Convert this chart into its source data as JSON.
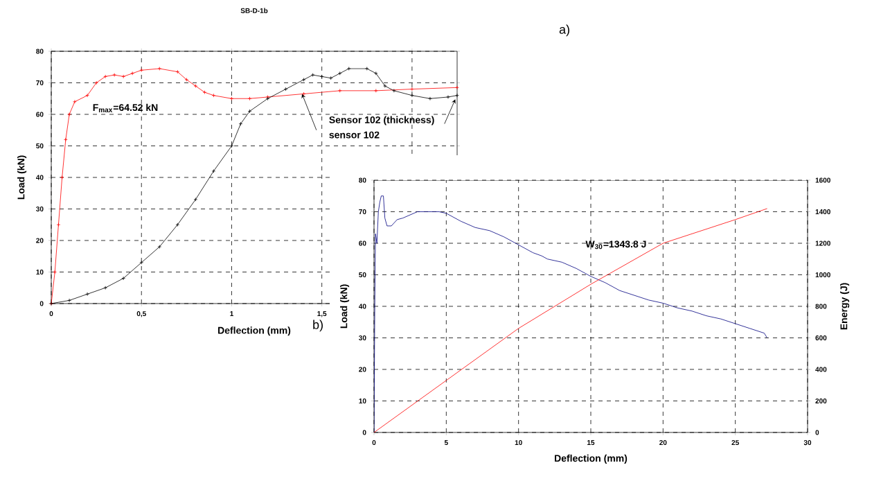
{
  "chart_data": [
    {
      "type": "line",
      "title": "SB-D-1b",
      "xlabel": "Deflection (mm)",
      "ylabel": "Load (kN)",
      "xlim": [
        0,
        2.25
      ],
      "xticks": [
        0,
        {
          "value": 0.5,
          "label": "0,5"
        },
        1,
        {
          "value": 1.5,
          "label": "1,5"
        },
        {
          "value": 2,
          "label": null
        }
      ],
      "ylim": [
        0,
        80
      ],
      "yticks": [
        0,
        10,
        20,
        30,
        40,
        50,
        60,
        70,
        80
      ],
      "grid": true,
      "marker": "cross",
      "x": [
        0,
        0.02,
        0.04,
        0.06,
        0.08,
        0.1,
        0.13,
        0.2,
        0.25,
        0.3,
        0.35,
        0.4,
        0.45,
        0.5,
        0.6,
        0.7,
        0.75,
        0.8,
        0.85,
        0.9,
        1.0,
        1.1,
        1.2,
        1.4,
        1.6,
        1.8,
        2.0,
        2.25
      ],
      "series": [
        {
          "color": "#ff0000",
          "values": [
            0,
            10,
            25,
            40,
            52,
            60,
            64,
            66,
            70,
            72,
            72.5,
            72,
            73,
            74,
            74.5,
            73.5,
            71,
            69,
            67,
            66,
            65,
            65,
            65.5,
            66.5,
            67.5,
            67.5,
            68,
            68.5
          ]
        },
        {
          "color": "#000000",
          "x": [
            0,
            0.1,
            0.2,
            0.3,
            0.4,
            0.5,
            0.6,
            0.7,
            0.8,
            0.9,
            1.0,
            1.05,
            1.1,
            1.2,
            1.3,
            1.4,
            1.45,
            1.5,
            1.55,
            1.6,
            1.65,
            1.75,
            1.8,
            1.85,
            1.9,
            2.0,
            2.1,
            2.2,
            2.25
          ],
          "values": [
            0,
            1,
            3,
            5,
            8,
            13,
            18,
            25,
            33,
            42,
            50,
            57,
            61,
            65,
            68,
            71,
            72.5,
            72,
            71.5,
            73,
            74.5,
            74.5,
            73,
            69,
            67.5,
            66,
            65,
            65.5,
            66
          ]
        }
      ],
      "annotations": [
        "a)",
        "F$_{max}$=64.52 kN",
        "Sensor 102 (thickness)",
        "sensor 102"
      ]
    },
    {
      "type": "line",
      "xlabel": "Deflection (mm)",
      "ylabel": "Load (kN)",
      "y2label": "Energy (J)",
      "xlim": [
        0,
        30
      ],
      "xticks": [
        0,
        5,
        10,
        15,
        20,
        25,
        30
      ],
      "ylim": [
        0,
        80
      ],
      "yticks": [
        0,
        10,
        20,
        30,
        40,
        50,
        60,
        70,
        80
      ],
      "y2lim": [
        0,
        1600
      ],
      "y2ticks": [
        0,
        200,
        400,
        600,
        800,
        1000,
        1200,
        1400,
        1600
      ],
      "grid": true,
      "series": [
        {
          "color": "#000080",
          "x": [
            0,
            0.05,
            0.1,
            0.2,
            0.3,
            0.4,
            0.5,
            0.65,
            0.75,
            0.9,
            1.2,
            1.6,
            2,
            3,
            4.5,
            5,
            6,
            7,
            8,
            9,
            10,
            11,
            11.6,
            12,
            13,
            14,
            15,
            16,
            17,
            18,
            19,
            20,
            21,
            22,
            23,
            24,
            25,
            26,
            27,
            27.2
          ],
          "values": [
            0,
            38,
            63,
            60,
            70,
            73,
            75,
            75,
            68,
            65.5,
            65.5,
            67.5,
            68,
            70,
            70,
            69.5,
            67,
            65,
            64,
            62,
            59.5,
            57,
            56,
            55,
            54,
            52,
            49.5,
            47.5,
            45,
            43.5,
            42,
            41,
            39.5,
            38.5,
            37,
            36,
            34.5,
            33,
            31.5,
            30
          ]
        },
        {
          "color": "#ff0000",
          "axis": "y2",
          "x": [
            0,
            5,
            10,
            15,
            20,
            25,
            27.2
          ],
          "values": [
            0,
            330,
            660,
            940,
            1200,
            1350,
            1420
          ]
        }
      ],
      "annotations": [
        "b)",
        "W$_{30}$=1343.8 J"
      ]
    }
  ]
}
